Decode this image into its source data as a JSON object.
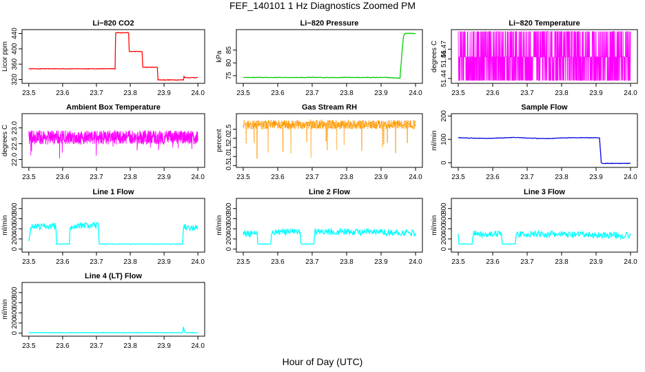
{
  "figure": {
    "title": "FEF_140101  1 Hz Diagnostics Zoomed PM",
    "xlabel": "Hour of Day (UTC)"
  },
  "chart_data": [
    {
      "type": "line",
      "title": "Li−820 CO2",
      "xlabel": "",
      "ylabel": "Licor ppm",
      "xlim": [
        23.48,
        24.02
      ],
      "ylim": [
        310,
        450
      ],
      "xticks": [
        "23.5",
        "23.6",
        "23.7",
        "23.8",
        "23.9",
        "24.0"
      ],
      "yticks": [
        "320",
        "360",
        "400",
        "440"
      ],
      "color": "#ff0000",
      "series": [
        {
          "style": "line",
          "x": [
            23.5,
            23.755,
            23.757,
            23.795,
            23.797,
            23.835,
            23.837,
            23.88,
            23.882,
            23.957,
            23.959,
            23.962,
            24.0
          ],
          "y": [
            348,
            348,
            442,
            442,
            393,
            393,
            352,
            352,
            319,
            319,
            328,
            325,
            325
          ]
        }
      ]
    },
    {
      "type": "line",
      "title": "Li−820 Pressure",
      "xlabel": "",
      "ylabel": "kPa",
      "xlim": [
        23.48,
        24.02
      ],
      "ylim": [
        72,
        93
      ],
      "xticks": [
        "23.5",
        "23.6",
        "23.7",
        "23.8",
        "23.9",
        "24.0"
      ],
      "yticks": [
        "75",
        "80",
        "85"
      ],
      "color": "#00cc00",
      "series": [
        {
          "style": "line",
          "x": [
            23.5,
            23.915,
            23.955,
            23.96,
            23.965,
            23.97,
            24.0
          ],
          "y": [
            74.3,
            74.3,
            74.0,
            83.0,
            90.5,
            91.5,
            91.5
          ]
        }
      ]
    },
    {
      "type": "line",
      "title": "Li−820 Temperature",
      "xlabel": "",
      "ylabel": "degrees C",
      "xlim": [
        23.48,
        24.02
      ],
      "ylim": [
        51.435,
        51.49
      ],
      "xticks": [
        "23.5",
        "23.6",
        "23.7",
        "23.8",
        "23.9",
        "24.0"
      ],
      "yticks": [
        "51.44",
        "51.46",
        "51.47"
      ],
      "color": "#ff00ff",
      "series": [
        {
          "style": "noise",
          "x_start": 23.5,
          "x_end": 24.0,
          "levels": [
            51.438,
            51.462,
            51.488
          ],
          "band_low": 51.438,
          "band_high": 51.462
        }
      ]
    },
    {
      "type": "line",
      "title": "Ambient Box Temperature",
      "xlabel": "",
      "ylabel": "degrees C",
      "xlim": [
        23.48,
        24.02
      ],
      "ylim": [
        21.75,
        23.45
      ],
      "xticks": [
        "23.5",
        "23.6",
        "23.7",
        "23.8",
        "23.9",
        "24.0"
      ],
      "yticks": [
        "22.0",
        "22.5",
        "23.0"
      ],
      "color": "#ff00ff",
      "series": [
        {
          "style": "noise",
          "x_start": 23.5,
          "x_end": 24.0,
          "center": 22.7,
          "spread": 0.45,
          "spikes_down": 22.0
        }
      ]
    },
    {
      "type": "scatter",
      "title": "Gas Stream RH",
      "xlabel": "",
      "ylabel": "percent",
      "xlim": [
        23.48,
        24.02
      ],
      "ylim": [
        0.4,
        3.35
      ],
      "xticks": [
        "23.5",
        "23.6",
        "23.7",
        "23.8",
        "23.9",
        "24.0"
      ],
      "yticks": [
        "0.5",
        "1.0",
        "1.5",
        "2.0",
        "2.5"
      ],
      "color": "#ff9900",
      "series": [
        {
          "style": "noise",
          "x_start": 23.5,
          "x_end": 24.0,
          "center": 2.75,
          "spread": 0.5,
          "spikes_down": 0.6
        }
      ]
    },
    {
      "type": "line",
      "title": "Sample Flow",
      "xlabel": "",
      "ylabel": "ml/min",
      "xlim": [
        23.48,
        24.02
      ],
      "ylim": [
        -20,
        210
      ],
      "xticks": [
        "23.5",
        "23.6",
        "23.7",
        "23.8",
        "23.9",
        "24.0"
      ],
      "yticks": [
        "0",
        "100",
        "200"
      ],
      "color": "#0000dd",
      "series": [
        {
          "style": "line",
          "x": [
            23.5,
            23.58,
            23.66,
            23.75,
            23.82,
            23.91,
            23.915,
            23.92,
            24.0
          ],
          "y": [
            107,
            104,
            108,
            103,
            107,
            107,
            0,
            -3,
            -3
          ]
        }
      ]
    },
    {
      "type": "line",
      "title": "Line 1 Flow",
      "xlabel": "",
      "ylabel": "ml/min",
      "xlim": [
        23.48,
        24.02
      ],
      "ylim": [
        -60,
        1000
      ],
      "xticks": [
        "23.5",
        "23.6",
        "23.7",
        "23.8",
        "23.9",
        "24.0"
      ],
      "yticks": [
        "0",
        "200",
        "400",
        "600",
        "800"
      ],
      "color": "#00ffff",
      "series": [
        {
          "style": "line",
          "x": [
            23.5,
            23.505,
            23.58,
            23.582,
            23.62,
            23.622,
            23.705,
            23.708,
            23.955,
            23.958,
            24.0
          ],
          "y": [
            150,
            450,
            450,
            100,
            100,
            460,
            460,
            100,
            100,
            440,
            420
          ]
        }
      ]
    },
    {
      "type": "line",
      "title": "Line 2 Flow",
      "xlabel": "",
      "ylabel": "ml/min",
      "xlim": [
        23.48,
        24.02
      ],
      "ylim": [
        -60,
        1000
      ],
      "xticks": [
        "23.5",
        "23.6",
        "23.7",
        "23.8",
        "23.9",
        "24.0"
      ],
      "yticks": [
        "0",
        "200",
        "400",
        "600",
        "800"
      ],
      "color": "#00ffff",
      "series": [
        {
          "style": "line",
          "x": [
            23.5,
            23.54,
            23.542,
            23.58,
            23.582,
            23.665,
            23.668,
            23.705,
            23.708,
            24.0
          ],
          "y": [
            300,
            300,
            100,
            100,
            340,
            340,
            100,
            100,
            350,
            320
          ]
        }
      ]
    },
    {
      "type": "line",
      "title": "Line 3 Flow",
      "xlabel": "",
      "ylabel": "ml/min",
      "xlim": [
        23.48,
        24.02
      ],
      "ylim": [
        -60,
        1000
      ],
      "xticks": [
        "23.5",
        "23.6",
        "23.7",
        "23.8",
        "23.9",
        "24.0"
      ],
      "yticks": [
        "0",
        "200",
        "400",
        "600",
        "800"
      ],
      "color": "#00ffff",
      "series": [
        {
          "style": "line",
          "x": [
            23.5,
            23.502,
            23.54,
            23.542,
            23.625,
            23.628,
            23.665,
            23.668,
            24.0
          ],
          "y": [
            300,
            100,
            100,
            300,
            300,
            100,
            100,
            300,
            270
          ]
        }
      ]
    },
    {
      "type": "line",
      "title": "Line 4 (LT) Flow",
      "xlabel": "",
      "ylabel": "ml/min",
      "xlim": [
        23.48,
        24.02
      ],
      "ylim": [
        -60,
        1000
      ],
      "xticks": [
        "23.5",
        "23.6",
        "23.7",
        "23.8",
        "23.9",
        "24.0"
      ],
      "yticks": [
        "0",
        "200",
        "400",
        "600",
        "800"
      ],
      "color": "#00ffff",
      "series": [
        {
          "style": "line",
          "x": [
            23.5,
            23.955,
            23.957,
            23.96,
            23.962,
            24.0
          ],
          "y": [
            10,
            10,
            120,
            60,
            10,
            10
          ]
        }
      ]
    }
  ]
}
